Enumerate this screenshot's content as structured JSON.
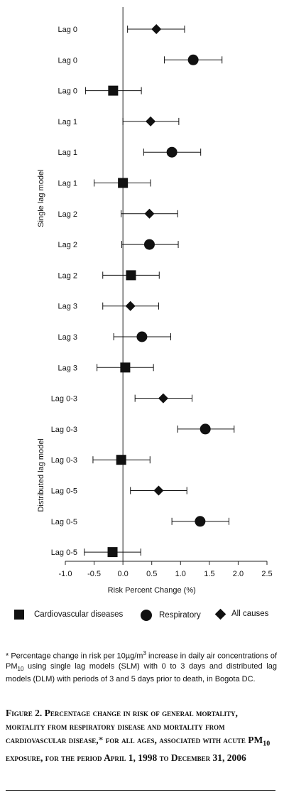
{
  "chart_data": {
    "type": "scatter",
    "subtype": "forest-plot",
    "xlabel": "Risk Percent Change (%)",
    "xlim": [
      -1.0,
      2.5
    ],
    "xticks": [
      "-1.0",
      "-0.5",
      "0.0",
      "0.5",
      "1.0",
      "1.5",
      "2.0",
      "2.5"
    ],
    "xtick_values": [
      -1.0,
      -0.5,
      0.0,
      0.5,
      1.0,
      1.5,
      2.0,
      2.5
    ],
    "groups": [
      {
        "label": "Single lag model",
        "from": 0,
        "to": 11
      },
      {
        "label": "Distributed lag model",
        "from": 12,
        "to": 17
      }
    ],
    "rows": [
      {
        "label": "Lag 0",
        "marker": "diamond",
        "est": 0.58,
        "lo": 0.08,
        "hi": 1.07
      },
      {
        "label": "Lag 0",
        "marker": "circle",
        "est": 1.22,
        "lo": 0.72,
        "hi": 1.72
      },
      {
        "label": "Lag 0",
        "marker": "square",
        "est": -0.17,
        "lo": -0.65,
        "hi": 0.32
      },
      {
        "label": "Lag 1",
        "marker": "diamond",
        "est": 0.48,
        "lo": 0.0,
        "hi": 0.97
      },
      {
        "label": "Lag 1",
        "marker": "circle",
        "est": 0.85,
        "lo": 0.36,
        "hi": 1.35
      },
      {
        "label": "Lag 1",
        "marker": "square",
        "est": 0.0,
        "lo": -0.5,
        "hi": 0.48
      },
      {
        "label": "Lag 2",
        "marker": "diamond",
        "est": 0.46,
        "lo": -0.03,
        "hi": 0.95
      },
      {
        "label": "Lag 2",
        "marker": "circle",
        "est": 0.46,
        "lo": -0.02,
        "hi": 0.96
      },
      {
        "label": "Lag 2",
        "marker": "square",
        "est": 0.14,
        "lo": -0.35,
        "hi": 0.63
      },
      {
        "label": "Lag 3",
        "marker": "diamond",
        "est": 0.13,
        "lo": -0.35,
        "hi": 0.62
      },
      {
        "label": "Lag 3",
        "marker": "circle",
        "est": 0.33,
        "lo": -0.16,
        "hi": 0.83
      },
      {
        "label": "Lag 3",
        "marker": "square",
        "est": 0.04,
        "lo": -0.45,
        "hi": 0.53
      },
      {
        "label": "Lag 0-3",
        "marker": "diamond",
        "est": 0.7,
        "lo": 0.21,
        "hi": 1.2
      },
      {
        "label": "Lag 0-3",
        "marker": "circle",
        "est": 1.43,
        "lo": 0.95,
        "hi": 1.93
      },
      {
        "label": "Lag 0-3",
        "marker": "square",
        "est": -0.03,
        "lo": -0.52,
        "hi": 0.47
      },
      {
        "label": "Lag 0-5",
        "marker": "diamond",
        "est": 0.62,
        "lo": 0.13,
        "hi": 1.11
      },
      {
        "label": "Lag 0-5",
        "marker": "circle",
        "est": 1.34,
        "lo": 0.85,
        "hi": 1.84
      },
      {
        "label": "Lag 0-5",
        "marker": "square",
        "est": -0.18,
        "lo": -0.67,
        "hi": 0.31
      }
    ],
    "legend": [
      {
        "marker": "square",
        "label": "Cardiovascular diseases"
      },
      {
        "marker": "circle",
        "label": "Respiratory"
      },
      {
        "marker": "diamond",
        "label": "All causes"
      }
    ],
    "colors": {
      "marker": "#111111",
      "axis": "#222222"
    }
  },
  "footnote": {
    "star": "*",
    "t1": " Percentage change in risk per 10µg/m",
    "sup": "3",
    "t2": " increase in daily air concentrations of PM",
    "sub": "10",
    "t3": " using single lag models (SLM) with 0 to 3 days and distributed lag models (DLM) with periods of 3 and 5 days prior to death, in Bogota DC."
  },
  "caption": {
    "t1": "Figure 2. Percentage change in risk of general mortality, mortality from respiratory disease and mortality from cardiovascular disease,",
    "star": "*",
    "t2": " for all ages, associated with acute PM",
    "sub": "10",
    "t3": " exposure, for the period April 1, 1998 to December 31, 2006"
  }
}
